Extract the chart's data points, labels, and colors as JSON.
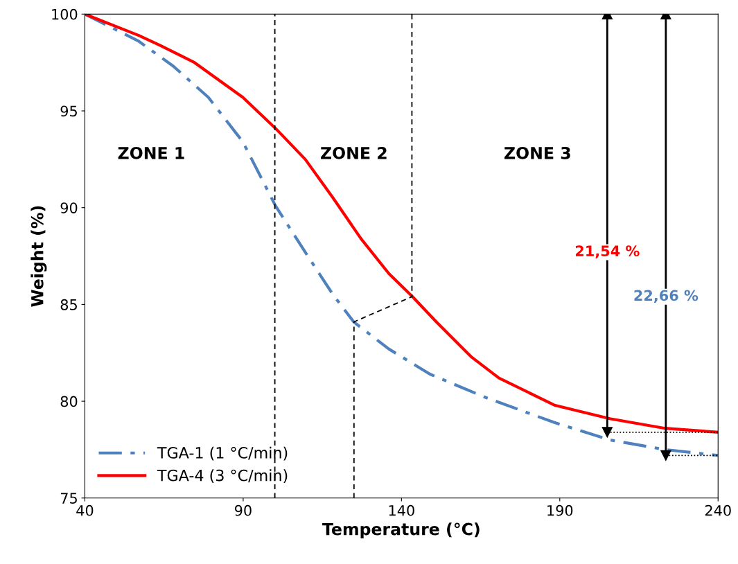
{
  "chart_data": {
    "type": "line",
    "xlabel": "Temperature (°C)",
    "ylabel": "Weight (%)",
    "xlim": [
      40,
      240
    ],
    "xticks": [
      40,
      90,
      140,
      190,
      240
    ],
    "ylim": [
      75,
      100
    ],
    "yticks": [
      75,
      80,
      85,
      90,
      95,
      100
    ],
    "grid": false,
    "legend": "bottom left",
    "series": [
      {
        "name": "TGA-1 (1 °C/min)",
        "color": "#4f81bd",
        "line_style": "dashdot",
        "x": [
          40,
          57,
          68,
          79,
          89.9,
          100.2,
          109.6,
          118.4,
          124.9,
          136,
          149,
          166.5,
          188.3,
          205.8,
          223.3,
          240
        ],
        "values": [
          100,
          98.6,
          97.3,
          95.7,
          93.4,
          90.1,
          87.7,
          85.5,
          84.1,
          82.7,
          81.4,
          80.2,
          78.9,
          78.0,
          77.5,
          77.2
        ]
      },
      {
        "name": "TGA-4 (3 °C/min)",
        "color": "#ff0000",
        "line_style": "solid",
        "x": [
          40,
          57,
          63.6,
          74.6,
          89.9,
          100.2,
          109.6,
          118.4,
          127.2,
          136,
          143.5,
          151,
          162,
          170.8,
          188.3,
          205.8,
          223.3,
          240
        ],
        "values": [
          100,
          98.9,
          98.4,
          97.5,
          95.7,
          94.1,
          92.5,
          90.5,
          88.4,
          86.6,
          85.4,
          84.1,
          82.3,
          81.2,
          79.8,
          79.1,
          78.6,
          78.4
        ]
      },
      {
        "color": "#000000",
        "line_style": "dashed",
        "x": [
          125,
          125,
          143.3,
          143.3
        ],
        "values": [
          75,
          84.1,
          85.4,
          100
        ]
      },
      {
        "color": "#000000",
        "line_style": "dotted",
        "x": [
          205,
          240
        ],
        "values": [
          78.4,
          78.4
        ]
      },
      {
        "color": "#000000",
        "line_style": "dotted",
        "x": [
          223.5,
          240
        ],
        "values": [
          77.2,
          77.2
        ]
      },
      {
        "color": "#000000",
        "line_style": "solid",
        "marker": "triangle",
        "x": [
          205,
          205
        ],
        "values": [
          78.4,
          100
        ]
      },
      {
        "color": "#000000",
        "line_style": "solid",
        "marker": "triangle",
        "x": [
          223.5,
          223.5
        ],
        "values": [
          77.2,
          100
        ]
      }
    ],
    "ref_lines": [
      {
        "axis": "x",
        "value": 100,
        "color": "#000000",
        "line_style": "dashed"
      }
    ],
    "annotations": [
      "ZONE 1",
      "ZONE 2",
      "ZONE 3",
      {
        "text": "21,54 %",
        "x": 205,
        "y": 87.7
      },
      {
        "text": "22,66 %",
        "x": 223.5,
        "y": 85.4
      }
    ]
  }
}
